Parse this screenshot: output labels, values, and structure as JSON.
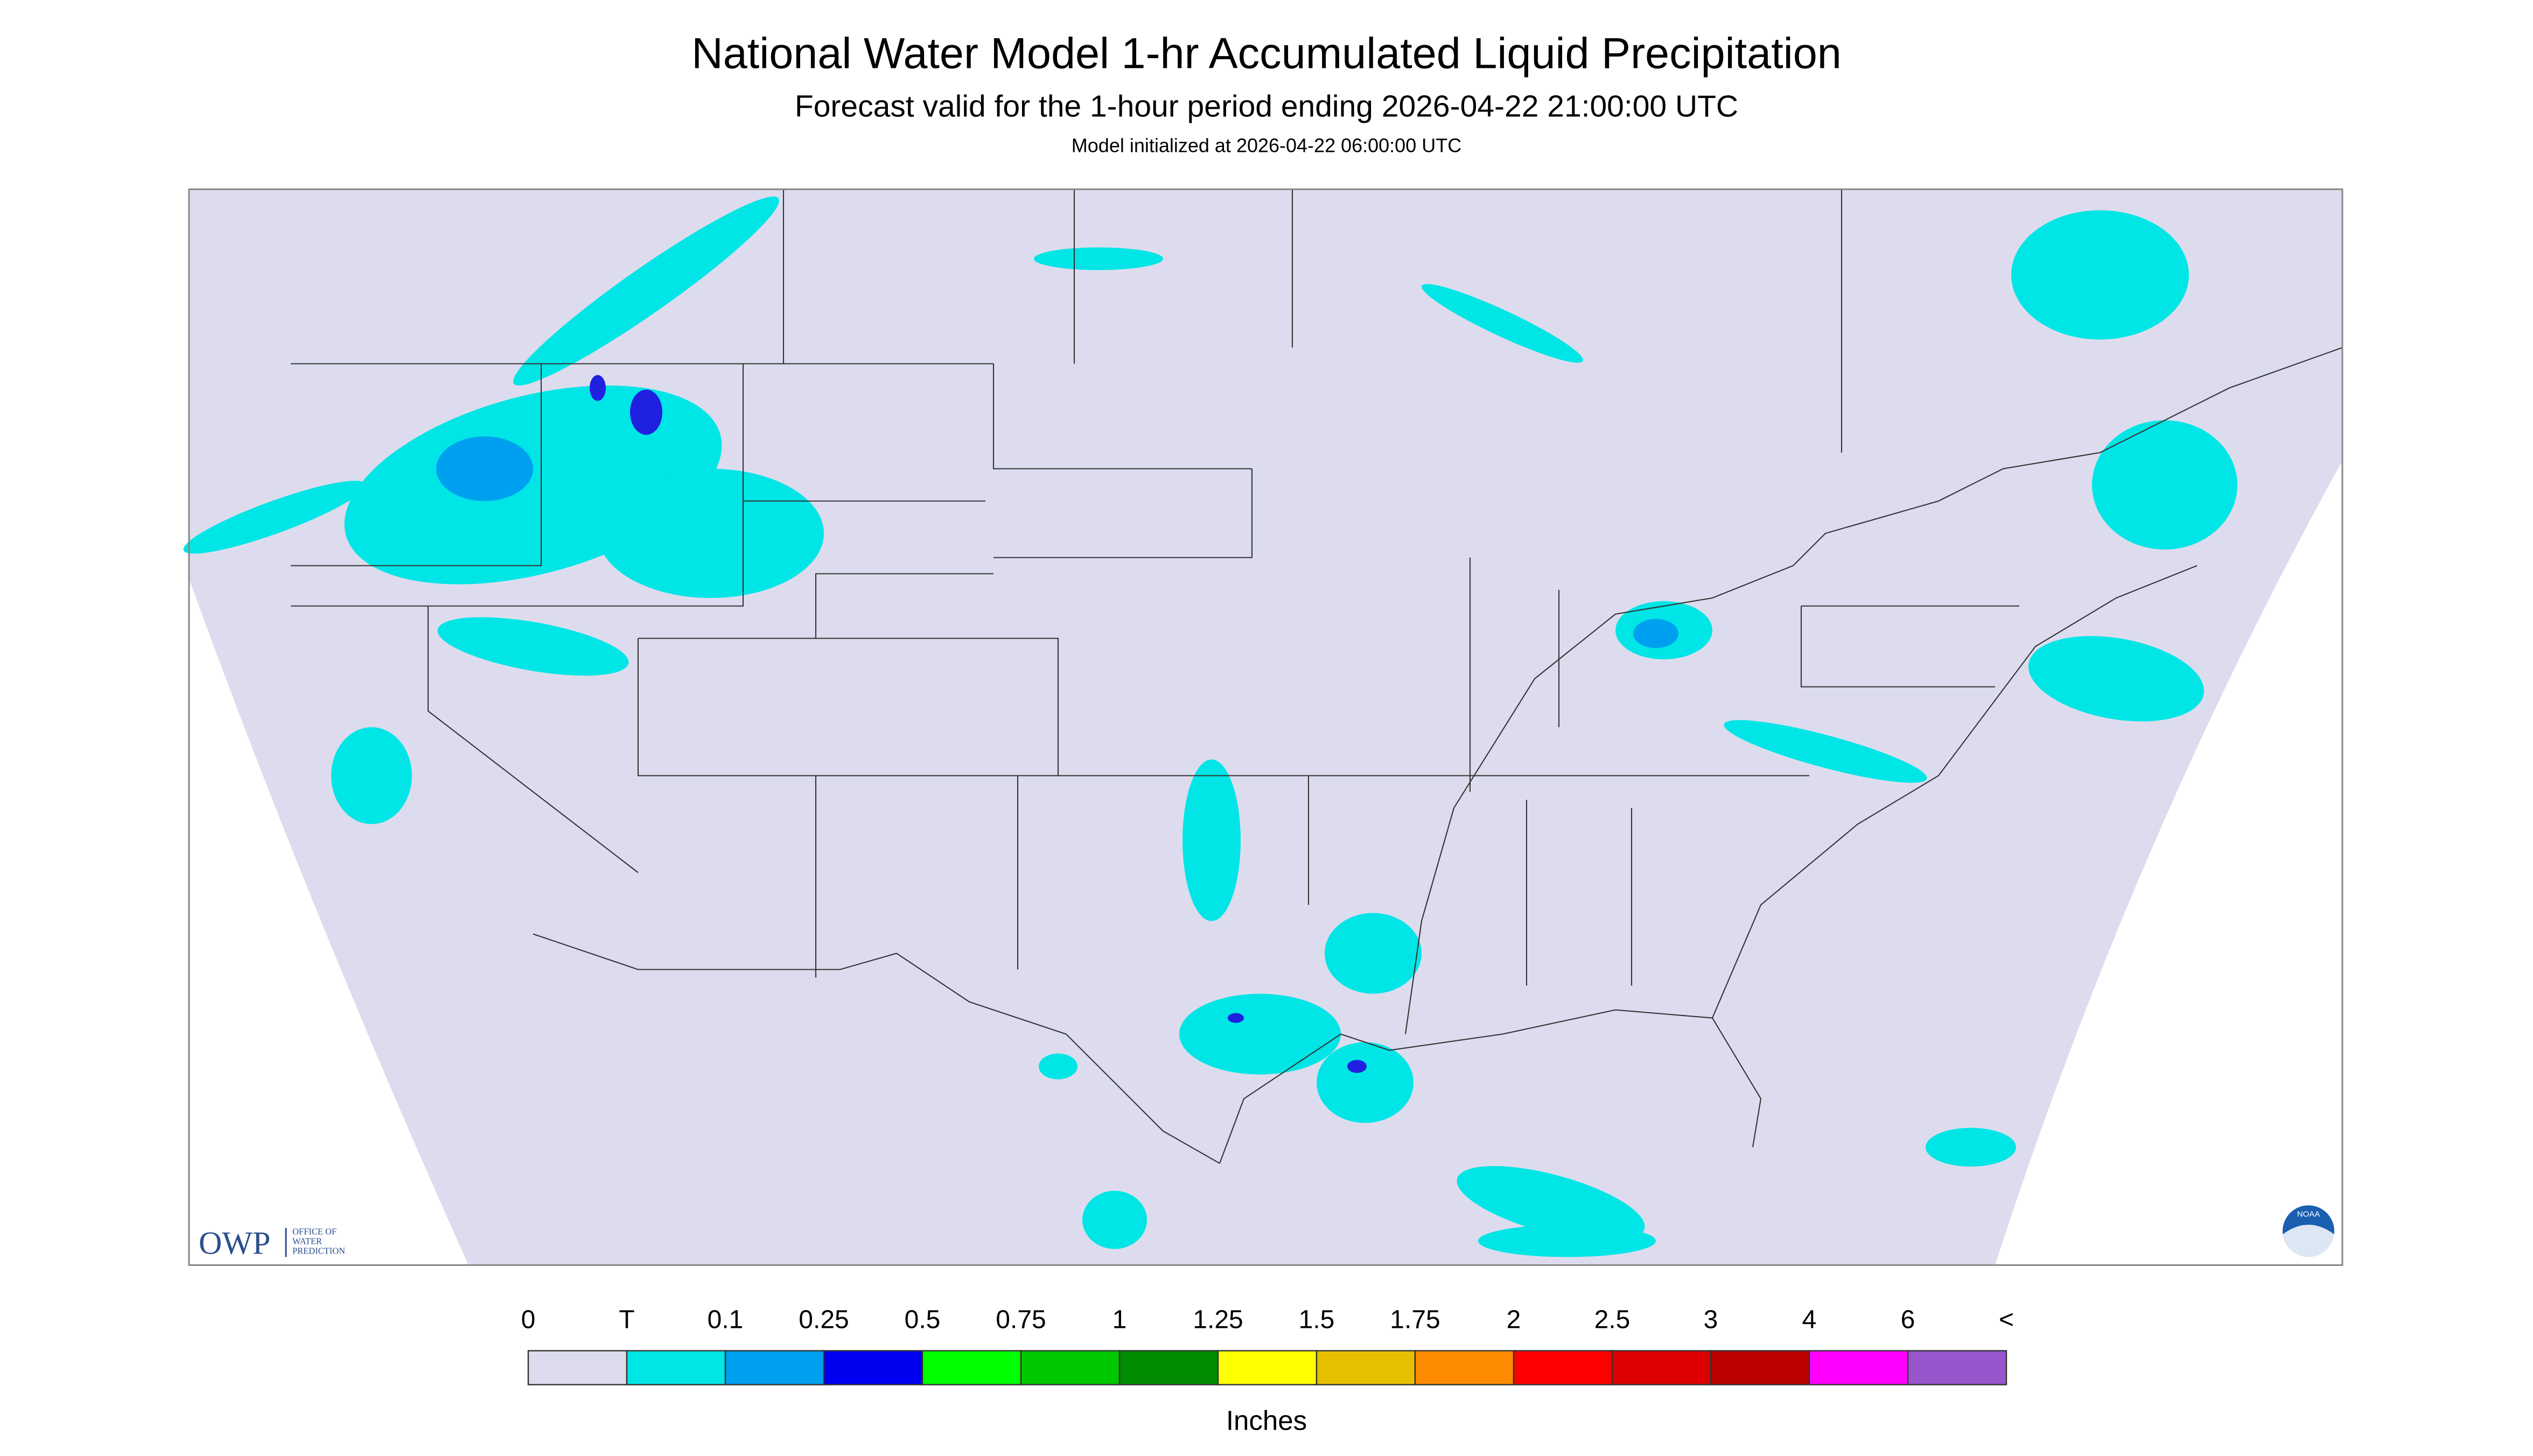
{
  "header": {
    "title": "National Water Model 1-hr Accumulated Liquid Precipitation",
    "subtitle": "Forecast valid for the 1-hour period ending 2026-04-22 21:00:00 UTC",
    "note": "Model initialized at 2026-04-22 06:00:00 UTC"
  },
  "logos": {
    "owp": "OWP",
    "owp_name": [
      "OFFICE OF",
      "WATER",
      "PREDICTION"
    ],
    "noaa": "NOAA"
  },
  "legend": {
    "unit": "Inches",
    "labels": [
      "0",
      "T",
      "0.1",
      "0.25",
      "0.5",
      "0.75",
      "1",
      "1.25",
      "1.5",
      "1.75",
      "2",
      "2.5",
      "3",
      "4",
      "6",
      "<"
    ],
    "colors": [
      "#dcdcee",
      "#00e5e5",
      "#00a0f0",
      "#0000f0",
      "#00ff00",
      "#00c800",
      "#008c00",
      "#ffff00",
      "#e6c000",
      "#ff8c00",
      "#ff0000",
      "#dd0000",
      "#bb0000",
      "#ff00ff",
      "#9955cc"
    ]
  }
}
